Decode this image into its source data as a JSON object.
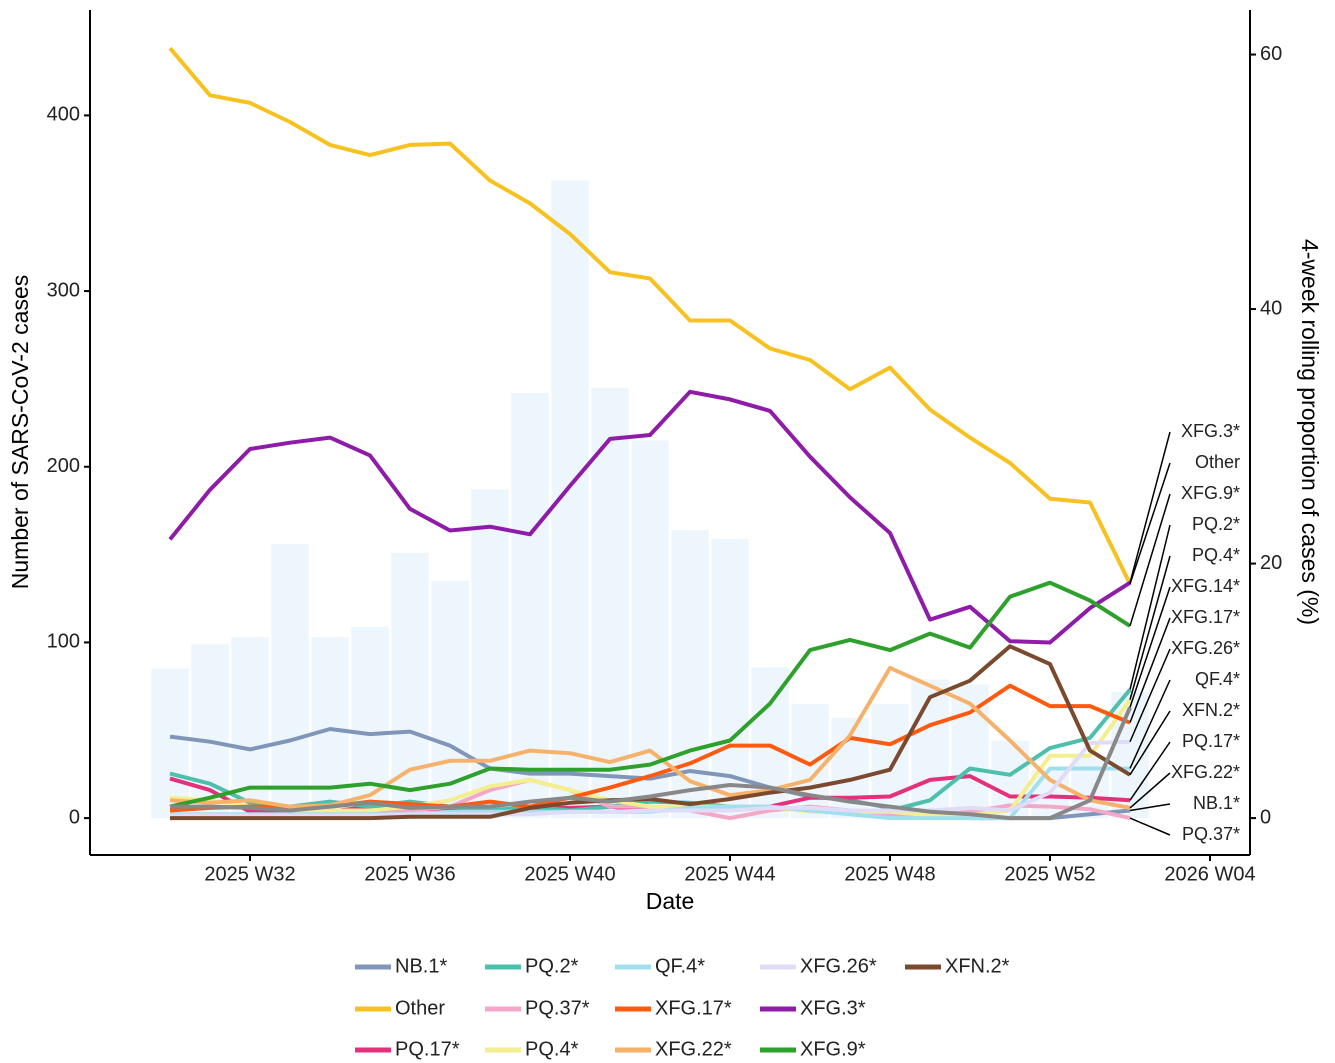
{
  "chart_data": {
    "type": "line",
    "x_title": "Date",
    "y_title": "Number of SARS-CoV-2 cases",
    "y2_title": "4-week rolling proportion of cases (%)",
    "x": [
      "2025 W30",
      "2025 W31",
      "2025 W32",
      "2025 W33",
      "2025 W34",
      "2025 W35",
      "2025 W36",
      "2025 W37",
      "2025 W38",
      "2025 W39",
      "2025 W40",
      "2025 W41",
      "2025 W42",
      "2025 W43",
      "2025 W44",
      "2025 W45",
      "2025 W46",
      "2025 W47",
      "2025 W48",
      "2025 W49",
      "2025 W50",
      "2025 W51",
      "2025 W52",
      "2026 W01",
      "2026 W02"
    ],
    "xlim": [
      "2025 W28",
      "2026 W05"
    ],
    "xticks": [
      "2025 W32",
      "2025 W36",
      "2025 W40",
      "2025 W44",
      "2025 W48",
      "2025 W52",
      "2026 W04"
    ],
    "ylim": [
      -21,
      460
    ],
    "yticks": [
      0,
      100,
      200,
      300,
      400
    ],
    "y2lim": [
      -2.9,
      63.5
    ],
    "y2ticks": [
      0,
      20,
      40,
      60
    ],
    "bar_color": "#eef6fd",
    "bar_values": [
      85,
      99,
      103,
      156,
      103,
      109,
      151,
      135,
      187,
      242,
      363,
      245,
      215,
      164,
      159,
      86,
      65,
      57,
      65,
      79,
      76,
      44,
      27,
      35,
      72
    ],
    "series": [
      {
        "name": "NB.1*",
        "color": "#8096b8",
        "axis": "y2",
        "values": [
          6.4,
          6.0,
          5.4,
          6.1,
          7.0,
          6.6,
          6.8,
          5.7,
          3.9,
          3.5,
          3.5,
          3.3,
          3.1,
          3.7,
          3.3,
          2.4,
          1.7,
          1.4,
          0.8,
          0.4,
          0.0,
          0.0,
          0.0,
          0.3,
          0.6
        ]
      },
      {
        "name": "Other",
        "color": "#f7c11f",
        "axis": "y2",
        "values": [
          60.5,
          56.8,
          56.2,
          54.7,
          52.9,
          52.1,
          52.9,
          53.0,
          50.1,
          48.3,
          45.9,
          42.9,
          42.4,
          39.1,
          39.1,
          36.9,
          36.0,
          33.7,
          35.4,
          32.1,
          29.9,
          27.9,
          25.1,
          24.8,
          18.4
        ]
      },
      {
        "name": "PQ.17*",
        "color": "#e4317b",
        "axis": "y2",
        "values": [
          3.1,
          2.2,
          0.5,
          0.6,
          0.5,
          0.9,
          0.8,
          0.6,
          0.6,
          0.8,
          0.8,
          0.9,
          0.6,
          0.8,
          0.9,
          0.9,
          1.6,
          1.6,
          1.7,
          3.0,
          3.3,
          1.7,
          1.7,
          1.6,
          1.4
        ]
      },
      {
        "name": "PQ.2*",
        "color": "#4cbfad",
        "axis": "y2",
        "values": [
          3.5,
          2.7,
          1.2,
          0.9,
          1.3,
          0.9,
          1.3,
          0.9,
          0.6,
          0.9,
          0.6,
          0.9,
          1.3,
          1.2,
          0.9,
          0.8,
          0.6,
          0.6,
          0.6,
          1.4,
          3.9,
          3.4,
          5.5,
          6.3,
          10.1
        ]
      },
      {
        "name": "PQ.37*",
        "color": "#f4a8c8",
        "axis": "y2",
        "values": [
          0.2,
          0.2,
          0.2,
          0.2,
          0.2,
          0.4,
          0.6,
          0.9,
          2.2,
          3.0,
          2.2,
          0.9,
          0.9,
          0.6,
          0,
          0.6,
          0.9,
          0.6,
          0.3,
          0.2,
          0.5,
          1.0,
          0.9,
          0.7,
          0
        ]
      },
      {
        "name": "PQ.4*",
        "color": "#f3ee8e",
        "axis": "y2",
        "values": [
          1.6,
          1.4,
          0.9,
          0.6,
          0.6,
          0.6,
          0.9,
          1.4,
          2.5,
          3.0,
          2.2,
          1.4,
          0.9,
          0.9,
          0.9,
          0.9,
          0.5,
          0.5,
          0.5,
          0.2,
          0.2,
          0.6,
          4.9,
          4.9,
          9.3
        ]
      },
      {
        "name": "QF.4*",
        "color": "#a0e0ee",
        "axis": "y2",
        "values": [
          0.3,
          0.3,
          0.3,
          0.3,
          0.3,
          0.3,
          0.3,
          0.5,
          0.5,
          0.5,
          0.5,
          0.5,
          0.5,
          0.8,
          0.9,
          0.9,
          0.6,
          0.3,
          0.0,
          0.0,
          0.0,
          0.0,
          3.9,
          3.9,
          3.9
        ]
      },
      {
        "name": "XFG.17*",
        "color": "#ff5a10",
        "axis": "y2",
        "values": [
          0.6,
          0.8,
          0.9,
          0.9,
          0.9,
          1.3,
          1.1,
          0.9,
          1.3,
          0.9,
          1.6,
          2.4,
          3.3,
          4.3,
          5.7,
          5.7,
          4.2,
          6.3,
          5.8,
          7.3,
          8.3,
          10.4,
          8.8,
          8.8,
          7.5
        ]
      },
      {
        "name": "XFG.22*",
        "color": "#f6b26b",
        "axis": "y2",
        "values": [
          1.4,
          1.2,
          1.4,
          0.9,
          1.0,
          1.8,
          3.8,
          4.5,
          4.5,
          5.3,
          5.1,
          4.4,
          5.3,
          2.9,
          1.8,
          2.2,
          3.0,
          6.5,
          11.8,
          10.4,
          9.0,
          6.1,
          3.0,
          1.4,
          0.8
        ]
      },
      {
        "name": "XFG.26*",
        "color": "#e0dcf8",
        "axis": "y2",
        "values": [
          0.2,
          0.2,
          0.2,
          0.2,
          0.2,
          0.2,
          0.3,
          0.3,
          0.3,
          0.3,
          0.5,
          0.5,
          0.6,
          0.6,
          0.6,
          0.8,
          0.8,
          0.6,
          0.6,
          0.6,
          0.8,
          0.6,
          2.0,
          5.9,
          6.0
        ]
      },
      {
        "name": "XFG.3*",
        "color": "#8e1ca8",
        "axis": "y2",
        "values": [
          21.9,
          25.8,
          29.0,
          29.5,
          29.9,
          28.5,
          24.3,
          22.6,
          22.9,
          22.3,
          26.1,
          29.8,
          30.1,
          33.5,
          32.9,
          32.0,
          28.4,
          25.2,
          22.4,
          15.6,
          16.6,
          13.9,
          13.8,
          16.5,
          18.5
        ]
      },
      {
        "name": "XFG.9*",
        "color": "#2ea02c",
        "axis": "y2",
        "values": [
          0.9,
          1.6,
          2.4,
          2.4,
          2.4,
          2.7,
          2.2,
          2.7,
          3.9,
          3.8,
          3.8,
          3.8,
          4.2,
          5.3,
          6.1,
          9.0,
          13.2,
          14.0,
          13.2,
          14.5,
          13.4,
          17.4,
          18.5,
          17.1,
          15.1
        ]
      },
      {
        "name": "XFN.2*",
        "color": "#7b4a2e",
        "axis": "y2",
        "values": [
          0,
          0,
          0,
          0,
          0,
          0,
          0.1,
          0.1,
          0.1,
          0.8,
          1.2,
          1.4,
          1.5,
          1.1,
          1.5,
          2.0,
          2.4,
          3.0,
          3.8,
          9.5,
          10.8,
          13.5,
          12.1,
          5.3,
          3.4
        ]
      },
      {
        "name": "XFG.14*",
        "color": "#888888",
        "axis": "y2",
        "in_legend": false,
        "values": [
          0.9,
          0.9,
          0.8,
          0.6,
          0.9,
          1.2,
          0.8,
          0.9,
          0.9,
          1.3,
          1.6,
          1.3,
          1.7,
          2.2,
          2.6,
          2.4,
          1.8,
          1.3,
          0.9,
          0.5,
          0.3,
          0.0,
          0.0,
          1.4,
          8.7
        ]
      }
    ]
  }
}
